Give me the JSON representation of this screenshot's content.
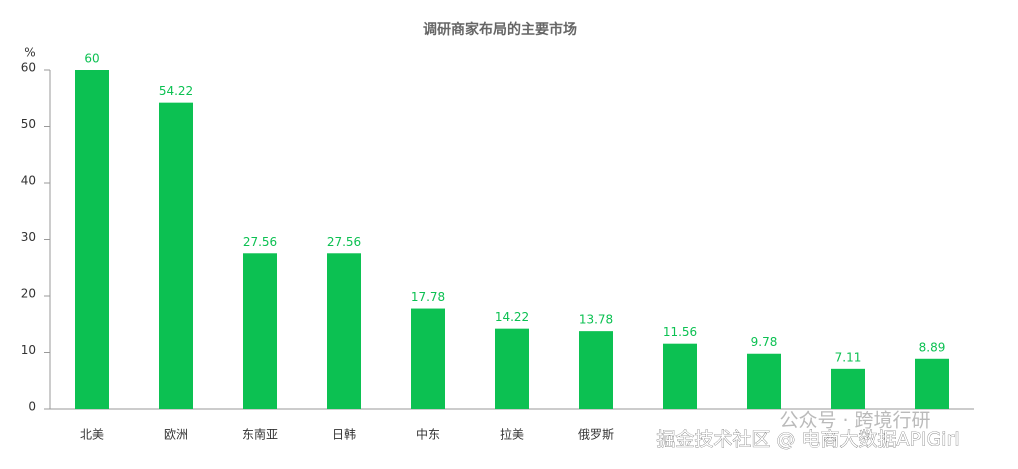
{
  "chart_data": {
    "type": "bar",
    "title": "调研商家布局的主要市场",
    "y_label": "%",
    "categories": [
      "北美",
      "欧洲",
      "东南亚",
      "日韩",
      "中东",
      "拉美",
      "俄罗斯",
      null,
      null,
      null,
      null
    ],
    "values": [
      60,
      54.22,
      27.56,
      27.56,
      17.78,
      14.22,
      13.78,
      11.56,
      9.78,
      7.11,
      8.89
    ],
    "color": "#0cc152",
    "ylim": [
      0,
      60
    ],
    "yticks": [
      0,
      10,
      20,
      30,
      40,
      50,
      60
    ],
    "grid": false
  },
  "watermarks": [
    "公众号 · 跨境行研",
    "掘金技术社区 @ 电商大数据APIGirl"
  ]
}
